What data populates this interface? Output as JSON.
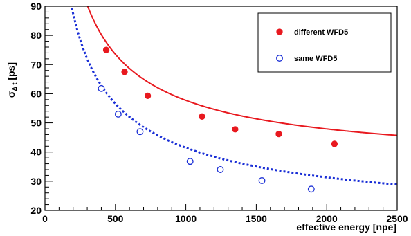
{
  "chart_data": {
    "type": "scatter",
    "title": "",
    "xlabel": "effective energy [npe]",
    "ylabel_main": "σ",
    "ylabel_sub": "Δ t",
    "ylabel_unit": " [ps]",
    "xlim": [
      0,
      2500
    ],
    "ylim": [
      20,
      90
    ],
    "x_ticks": [
      0,
      500,
      1000,
      1500,
      2000,
      2500
    ],
    "y_ticks": [
      20,
      30,
      40,
      50,
      60,
      70,
      80,
      90
    ],
    "grid": false,
    "legend_position": "top-right",
    "series": [
      {
        "name": "different WFD5",
        "marker": "filled-circle",
        "color": "#e8191f",
        "fit_style": "solid",
        "fit": {
          "model": "sqrt(a^2/x + b^2)",
          "a": 1440,
          "b": 35.5
        },
        "x": [
          435,
          565,
          730,
          1115,
          1350,
          1660,
          2055
        ],
        "y": [
          75.0,
          67.5,
          59.3,
          52.2,
          47.8,
          46.2,
          42.8
        ]
      },
      {
        "name": "same WFD5",
        "marker": "open-circle",
        "color": "#1a2fd6",
        "fit_style": "dotted",
        "fit": {
          "model": "sqrt(a^2/x + b^2)",
          "a": 1217,
          "b": 15.5
        },
        "x": [
          400,
          520,
          675,
          1030,
          1245,
          1540,
          1890
        ],
        "y": [
          61.8,
          53.0,
          47.0,
          36.8,
          34.0,
          30.2,
          27.3
        ]
      }
    ]
  }
}
